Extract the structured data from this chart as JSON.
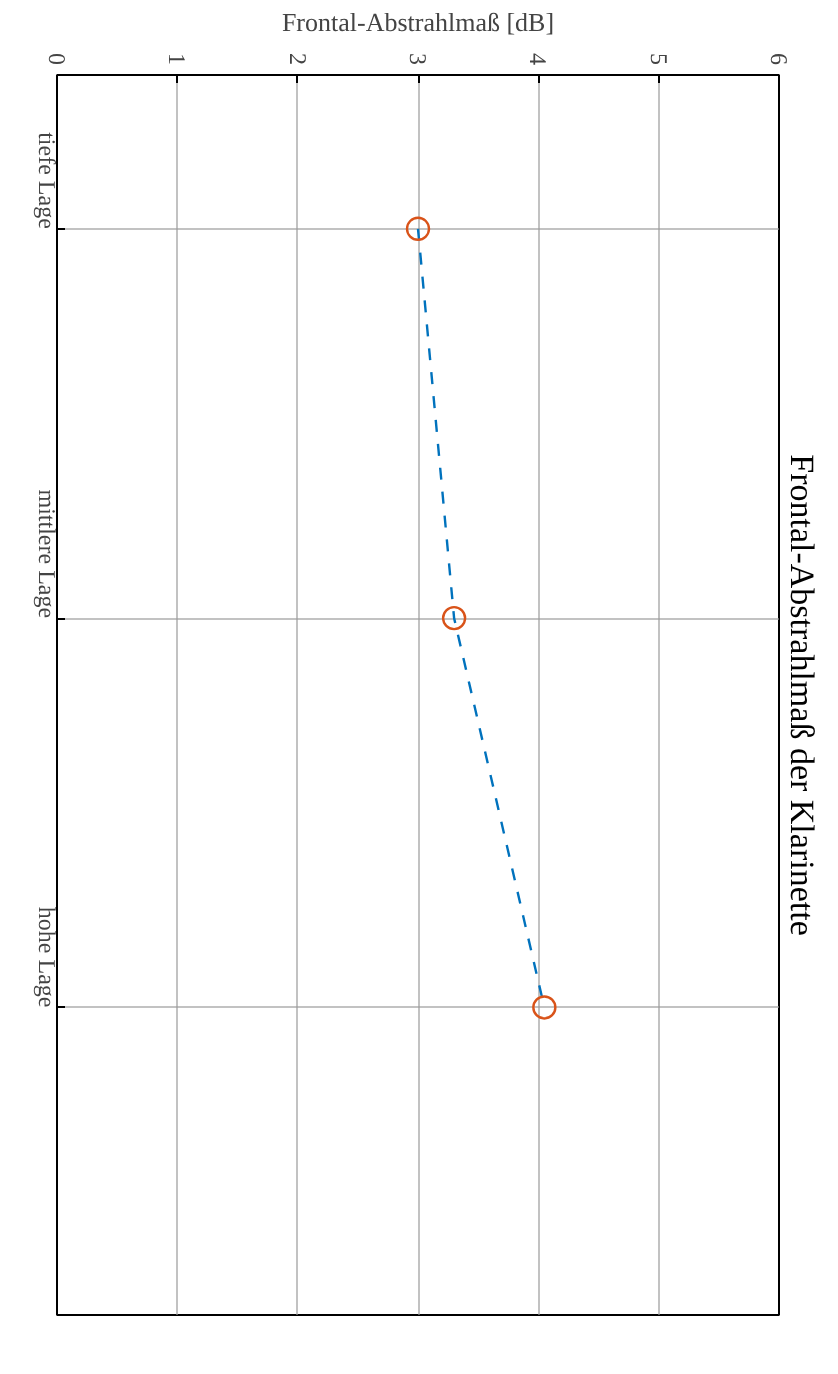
{
  "chart_data": {
    "type": "line",
    "title": "Frontal-Abstrahlmaß der Klarinette",
    "xlabel": "Frontal-Abstrahlmaß [dB]",
    "orientation": "horizontal",
    "categories": [
      "tiefe Lage",
      "mittlere Lage",
      "hohe Lage"
    ],
    "series": [
      {
        "color": "#0072bd",
        "colors": [
          "#d95319",
          "#d95319",
          "#d95319"
        ],
        "values": [
          3.0,
          3.3,
          4.05
        ]
      }
    ],
    "xlim": [
      0,
      6
    ],
    "xticks": [
      0,
      1,
      2,
      3,
      4,
      5,
      6
    ],
    "grid": true,
    "marker": "circle",
    "line_style": "dashed"
  }
}
